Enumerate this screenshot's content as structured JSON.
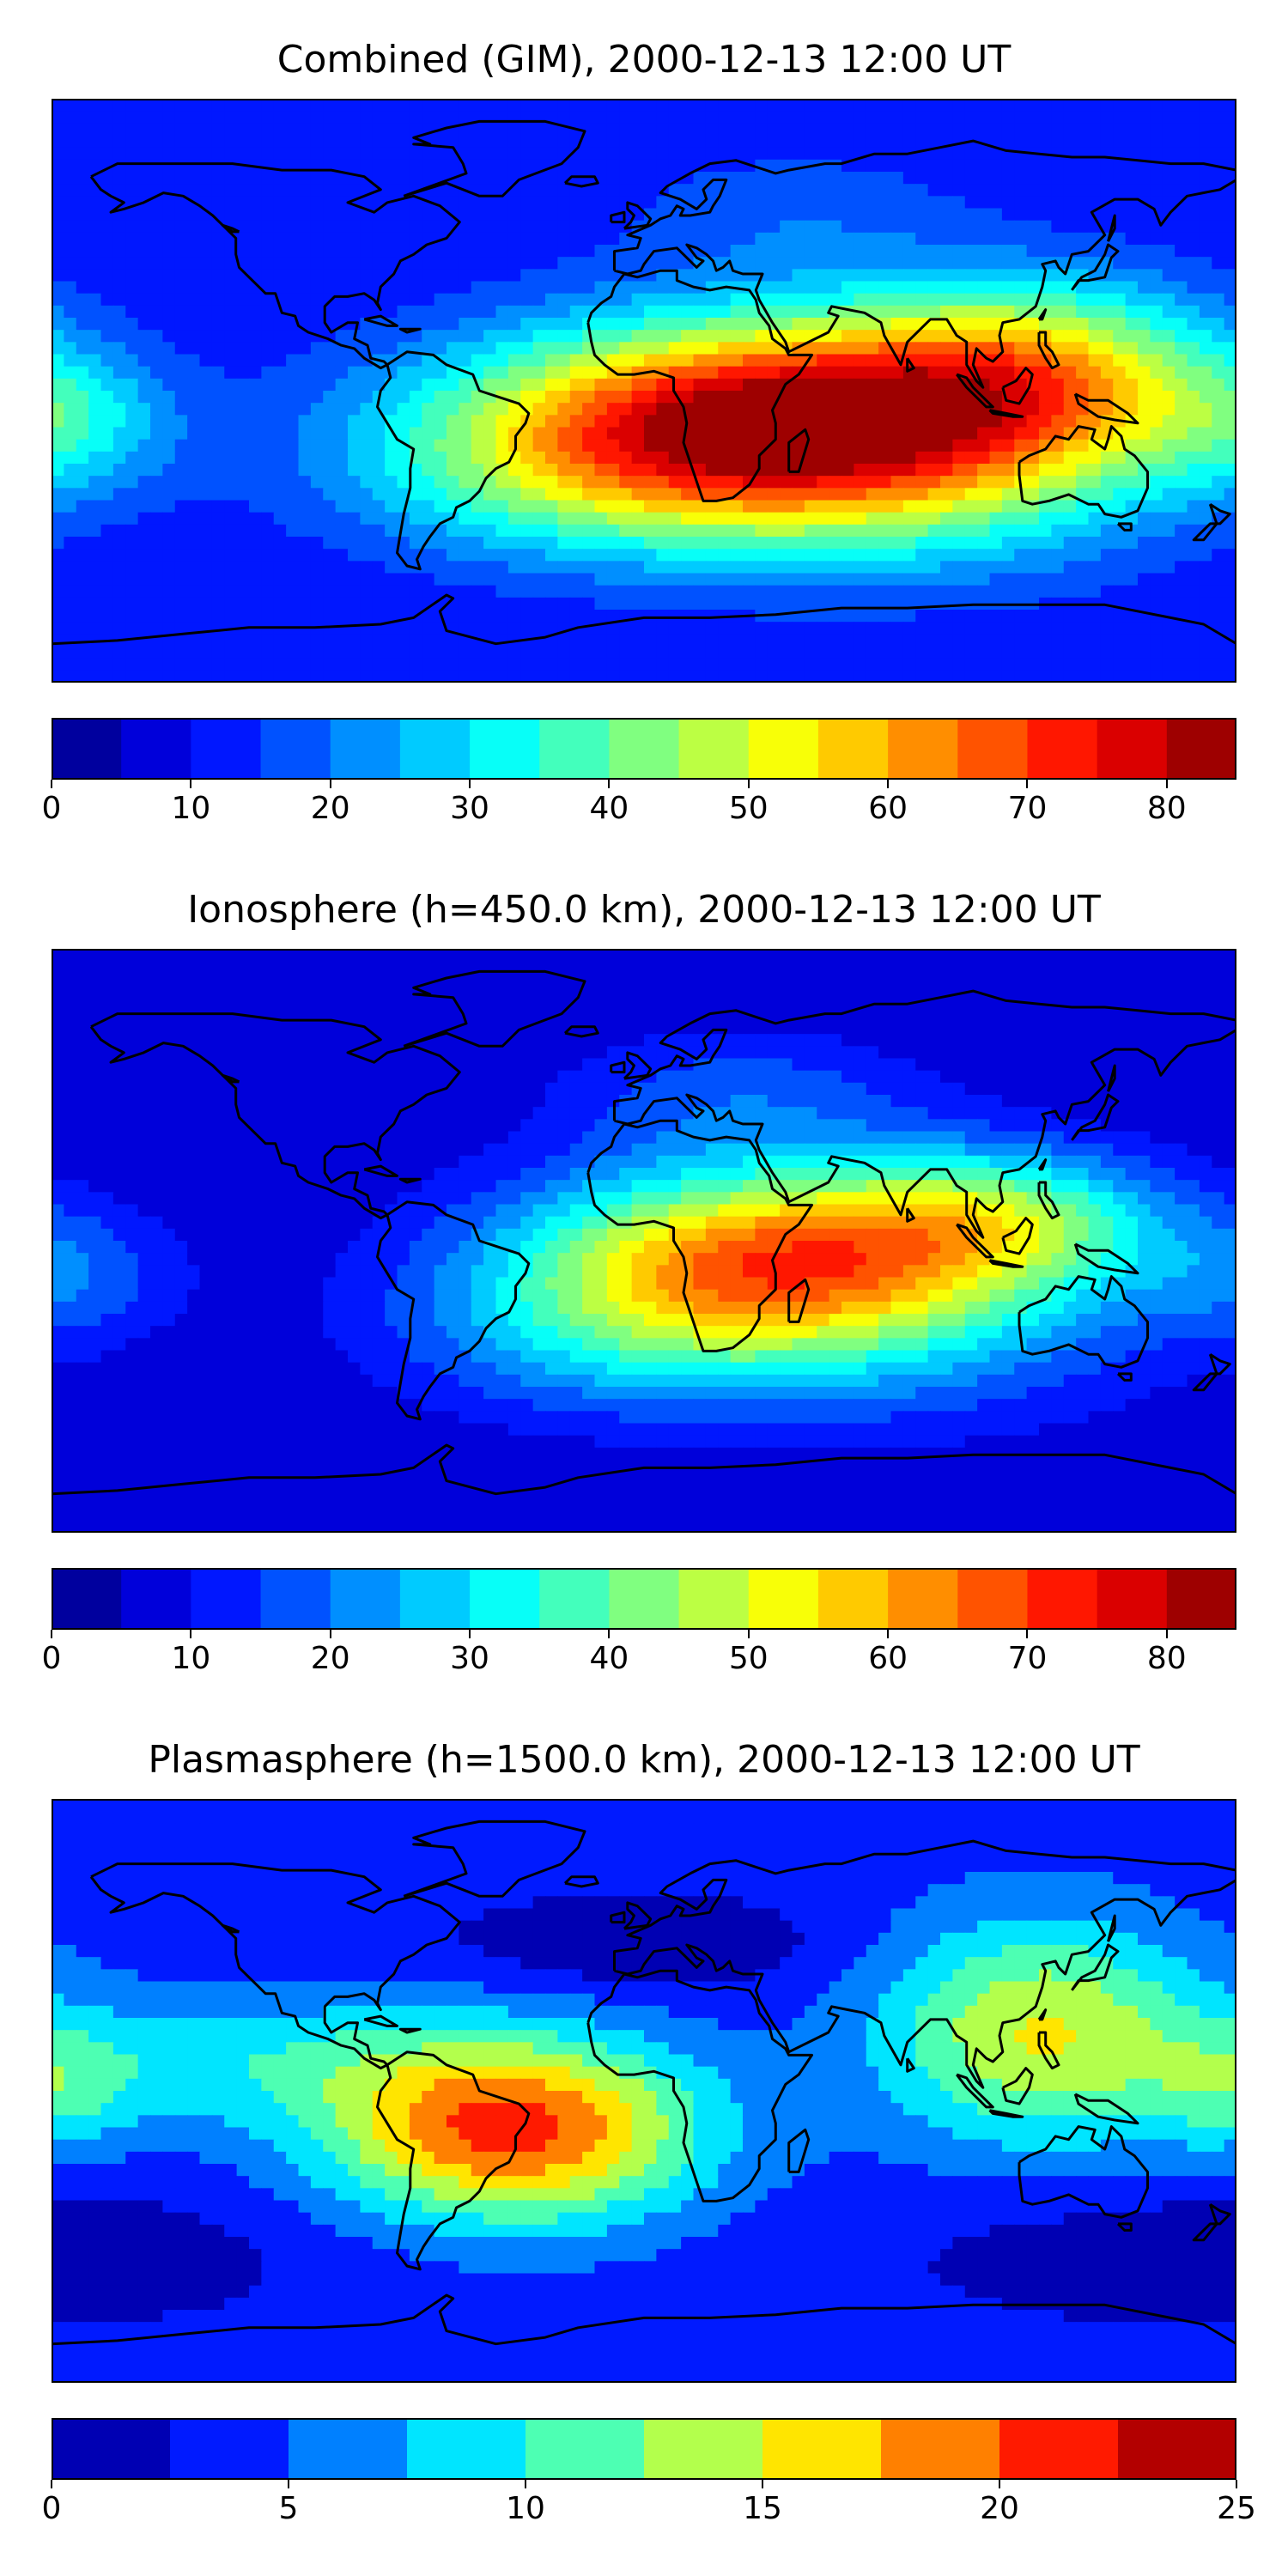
{
  "chart_data": [
    {
      "type": "heatmap",
      "title": "Combined (GIM), 2000-12-13 12:00 UT",
      "colorbar": {
        "levels": [
          0,
          5,
          10,
          15,
          20,
          25,
          30,
          35,
          40,
          45,
          50,
          55,
          60,
          65,
          70,
          75,
          80,
          85
        ],
        "tick_values": [
          0,
          10,
          20,
          30,
          40,
          50,
          60,
          70,
          80
        ],
        "tick_labels": [
          "0",
          "10",
          "20",
          "30",
          "40",
          "50",
          "60",
          "70",
          "80"
        ]
      },
      "background_value": 10,
      "features": [
        {
          "lon": 40,
          "lat": -8,
          "amp": 62,
          "slon": 65,
          "slat": 22
        },
        {
          "lon": -20,
          "lat": -25,
          "amp": 18,
          "slon": 55,
          "slat": 20
        },
        {
          "lon": 120,
          "lat": 8,
          "amp": 30,
          "slon": 40,
          "slat": 20
        },
        {
          "lon": 80,
          "lat": -25,
          "amp": 18,
          "slon": 60,
          "slat": 25
        },
        {
          "lon": -175,
          "lat": -10,
          "amp": 15,
          "slon": 25,
          "slat": 15
        },
        {
          "lon": 45,
          "lat": 55,
          "amp": 8,
          "slon": 40,
          "slat": 15
        }
      ]
    },
    {
      "type": "heatmap",
      "title": "Ionosphere  (h=450.0 km), 2000-12-13 12:00 UT",
      "colorbar": {
        "levels": [
          0,
          5,
          10,
          15,
          20,
          25,
          30,
          35,
          40,
          45,
          50,
          55,
          60,
          65,
          70,
          75,
          80,
          85
        ],
        "tick_values": [
          0,
          10,
          20,
          30,
          40,
          50,
          60,
          70,
          80
        ],
        "tick_labels": [
          "0",
          "10",
          "20",
          "30",
          "40",
          "50",
          "60",
          "70",
          "80"
        ]
      },
      "background_value": 5,
      "features": [
        {
          "lon": 38,
          "lat": -5,
          "amp": 53,
          "slon": 55,
          "slat": 20
        },
        {
          "lon": -10,
          "lat": -30,
          "amp": 15,
          "slon": 50,
          "slat": 18
        },
        {
          "lon": 110,
          "lat": 8,
          "amp": 25,
          "slon": 35,
          "slat": 15
        },
        {
          "lon": 80,
          "lat": -25,
          "amp": 13,
          "slon": 60,
          "slat": 25
        },
        {
          "lon": 30,
          "lat": 45,
          "amp": 12,
          "slon": 40,
          "slat": 15
        },
        {
          "lon": -175,
          "lat": -10,
          "amp": 12,
          "slon": 25,
          "slat": 15
        }
      ]
    },
    {
      "type": "heatmap",
      "title": "Plasmasphere (h=1500.0 km), 2000-12-13 12:00 UT",
      "colorbar": {
        "levels": [
          0,
          2.5,
          5,
          7.5,
          10,
          12.5,
          15,
          17.5,
          20,
          22.5,
          25
        ],
        "tick_values": [
          0,
          5,
          10,
          15,
          20,
          25
        ],
        "tick_labels": [
          "0",
          "5",
          "10",
          "15",
          "20",
          "25"
        ]
      },
      "background_value": 3.5,
      "features": [
        {
          "lon": -40,
          "lat": -12,
          "amp": 17.5,
          "slon": 40,
          "slat": 20
        },
        {
          "lon": 120,
          "lat": 18,
          "amp": 11.5,
          "slon": 35,
          "slat": 25
        },
        {
          "lon": -120,
          "lat": 10,
          "amp": 5,
          "slon": 50,
          "slat": 15
        },
        {
          "lon": 0,
          "lat": 45,
          "amp": -3.5,
          "slon": 40,
          "slat": 10
        },
        {
          "lon": -180,
          "lat": 0,
          "amp": 5,
          "slon": 20,
          "slat": 15
        },
        {
          "lon": 170,
          "lat": -50,
          "amp": -3,
          "slon": 60,
          "slat": 15
        }
      ]
    }
  ]
}
